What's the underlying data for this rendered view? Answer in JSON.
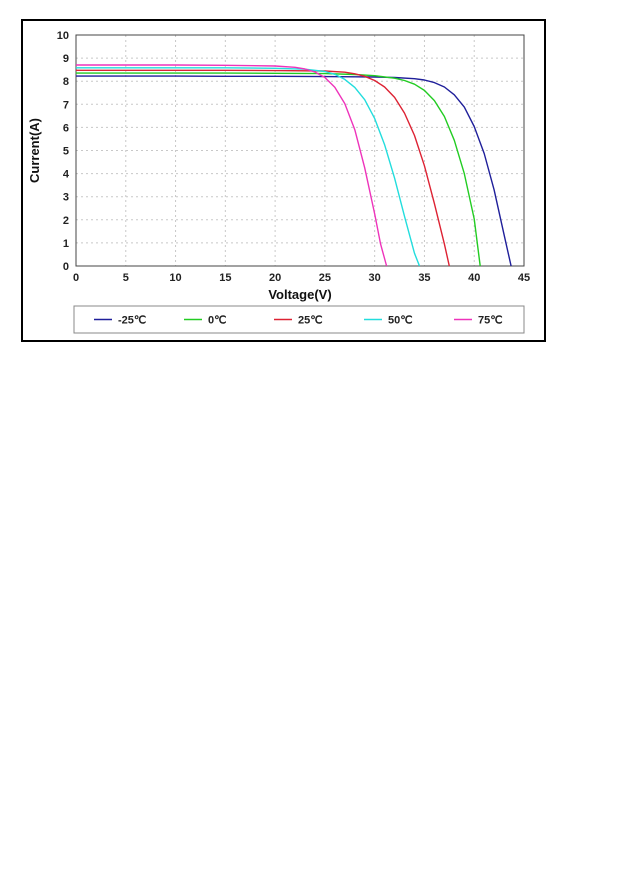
{
  "chart_data": {
    "type": "line",
    "title": "",
    "xlabel": "Voltage(V)",
    "ylabel": "Current(A)",
    "xlim": [
      0,
      45
    ],
    "ylim": [
      0,
      10
    ],
    "xticks": [
      0,
      5,
      10,
      15,
      20,
      25,
      30,
      35,
      40,
      45
    ],
    "yticks": [
      0,
      1,
      2,
      3,
      4,
      5,
      6,
      7,
      8,
      9,
      10
    ],
    "grid": true,
    "legend_position": "bottom",
    "series": [
      {
        "name": "-25℃",
        "color": "#1f1f9a",
        "x": [
          0,
          5,
          10,
          15,
          20,
          25,
          28,
          30,
          32,
          34,
          35,
          36,
          37,
          38,
          39,
          40,
          41,
          42,
          43,
          43.7
        ],
        "y": [
          8.22,
          8.22,
          8.22,
          8.21,
          8.21,
          8.2,
          8.19,
          8.18,
          8.16,
          8.11,
          8.05,
          7.94,
          7.75,
          7.41,
          6.88,
          6.04,
          4.87,
          3.3,
          1.35,
          0
        ]
      },
      {
        "name": "0℃",
        "color": "#22cc22",
        "x": [
          0,
          5,
          10,
          15,
          20,
          25,
          28,
          30,
          32,
          33,
          34,
          35,
          36,
          37,
          38,
          39,
          40,
          40.6
        ],
        "y": [
          8.35,
          8.35,
          8.35,
          8.35,
          8.34,
          8.33,
          8.29,
          8.24,
          8.13,
          8.03,
          7.87,
          7.6,
          7.16,
          6.47,
          5.44,
          4.0,
          2.04,
          0
        ]
      },
      {
        "name": "25℃",
        "color": "#dd2233",
        "x": [
          0,
          5,
          10,
          15,
          20,
          25,
          27,
          28,
          29,
          30,
          31,
          32,
          33,
          34,
          35,
          36,
          37,
          37.5
        ],
        "y": [
          8.47,
          8.47,
          8.47,
          8.47,
          8.46,
          8.44,
          8.39,
          8.32,
          8.21,
          8.03,
          7.75,
          7.3,
          6.62,
          5.65,
          4.34,
          2.7,
          0.95,
          0
        ]
      },
      {
        "name": "50℃",
        "color": "#22dddd",
        "x": [
          0,
          5,
          10,
          15,
          20,
          23,
          25,
          26,
          27,
          28,
          29,
          30,
          31,
          32,
          33,
          34,
          34.5
        ],
        "y": [
          8.58,
          8.58,
          8.58,
          8.58,
          8.56,
          8.52,
          8.42,
          8.3,
          8.08,
          7.73,
          7.2,
          6.38,
          5.25,
          3.8,
          2.15,
          0.55,
          0
        ]
      },
      {
        "name": "75℃",
        "color": "#ee33bb",
        "x": [
          0,
          5,
          10,
          15,
          20,
          22,
          23,
          24,
          25,
          26,
          27,
          28,
          29,
          30,
          30.6,
          31.2
        ],
        "y": [
          8.7,
          8.7,
          8.7,
          8.69,
          8.66,
          8.6,
          8.53,
          8.4,
          8.16,
          7.74,
          7.03,
          5.9,
          4.25,
          2.25,
          0.95,
          0
        ]
      }
    ]
  }
}
